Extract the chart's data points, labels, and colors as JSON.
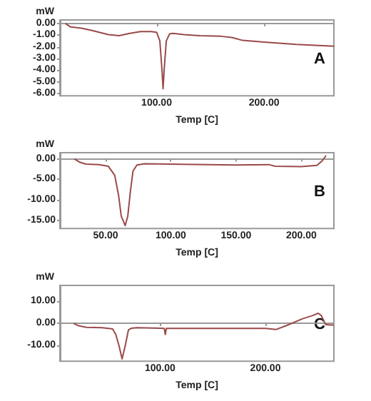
{
  "chart_data": [
    {
      "type": "line",
      "xlabel": "Temp [C]",
      "ylabel": "mW",
      "annotations": [
        "A"
      ],
      "xlim": [
        10,
        265
      ],
      "ylim": [
        -6.2,
        0.3
      ],
      "xticks": [
        {
          "value": 100,
          "label": "100.00"
        },
        {
          "value": 200,
          "label": "200.00"
        }
      ],
      "yticks": [
        {
          "value": 0,
          "label": "0.00"
        },
        {
          "value": -1,
          "label": "-1.00"
        },
        {
          "value": -2,
          "label": "-2.00"
        },
        {
          "value": -3,
          "label": "-3.00"
        },
        {
          "value": -4,
          "label": "-4.00"
        },
        {
          "value": -5,
          "label": "-5.00"
        },
        {
          "value": -6,
          "label": "-6.00"
        }
      ],
      "series": [
        {
          "color": "#9a4a4a",
          "x": [
            15,
            20,
            30,
            40,
            55,
            65,
            75,
            85,
            95,
            100,
            103,
            105,
            106,
            107,
            109,
            112,
            115,
            125,
            140,
            160,
            170,
            180,
            200,
            230,
            265
          ],
          "values": [
            0,
            -0.3,
            -0.4,
            -0.6,
            -0.95,
            -1.05,
            -0.85,
            -0.7,
            -0.7,
            -0.75,
            -1.5,
            -4,
            -5.6,
            -4,
            -1.5,
            -0.9,
            -0.85,
            -0.95,
            -1.05,
            -1.1,
            -1.2,
            -1.45,
            -1.6,
            -1.8,
            -1.95
          ]
        }
      ]
    },
    {
      "type": "line",
      "xlabel": "Temp [C]",
      "ylabel": "mW",
      "annotations": [
        "B"
      ],
      "xlim": [
        15,
        225
      ],
      "ylim": [
        -17,
        1.5
      ],
      "xticks": [
        {
          "value": 50,
          "label": "50.00"
        },
        {
          "value": 100,
          "label": "100.00"
        },
        {
          "value": 150,
          "label": "150.00"
        },
        {
          "value": 200,
          "label": "200.00"
        }
      ],
      "yticks": [
        {
          "value": 0,
          "label": "0.00"
        },
        {
          "value": -5,
          "label": "-5.00"
        },
        {
          "value": -10,
          "label": "-10.00"
        },
        {
          "value": -15,
          "label": "-15.00"
        }
      ],
      "series": [
        {
          "color": "#9a4a4a",
          "x": [
            26,
            30,
            35,
            45,
            52,
            57,
            60,
            62,
            65,
            67,
            69,
            71,
            74,
            80,
            100,
            150,
            175,
            180,
            200,
            212,
            216,
            219
          ],
          "values": [
            0,
            -0.8,
            -1.3,
            -1.4,
            -1.8,
            -4,
            -9,
            -14,
            -16.3,
            -14,
            -8,
            -3,
            -1.5,
            -1.2,
            -1.3,
            -1.5,
            -1.4,
            -1.8,
            -1.9,
            -1.6,
            -0.5,
            0.8
          ]
        }
      ]
    },
    {
      "type": "line",
      "xlabel": "Temp [C]",
      "ylabel": "mW",
      "annotations": [
        "C"
      ],
      "xlim": [
        5,
        265
      ],
      "ylim": [
        -17,
        17
      ],
      "xticks": [
        {
          "value": 100,
          "label": "100.00"
        },
        {
          "value": 200,
          "label": "200.00"
        }
      ],
      "yticks": [
        {
          "value": 10,
          "label": "10.00"
        },
        {
          "value": 0,
          "label": "0.00"
        },
        {
          "value": -10,
          "label": "-10.00"
        }
      ],
      "series": [
        {
          "color": "#9a4a4a",
          "x": [
            18,
            22,
            30,
            45,
            55,
            58,
            61,
            64,
            67,
            70,
            73,
            78,
            100,
            104,
            105,
            106,
            112,
            150,
            200,
            210,
            220,
            235,
            245,
            250,
            253,
            257,
            262,
            265
          ],
          "values": [
            0,
            -1,
            -1.8,
            -2,
            -2.5,
            -5,
            -10,
            -16,
            -10,
            -3,
            -2.2,
            -2,
            -2.2,
            -2.3,
            -5,
            -2.3,
            -2.3,
            -2.3,
            -2.3,
            -2.8,
            -1,
            2,
            3.5,
            4.5,
            3.5,
            -0.5,
            -0.8,
            -0.8
          ]
        }
      ]
    }
  ]
}
